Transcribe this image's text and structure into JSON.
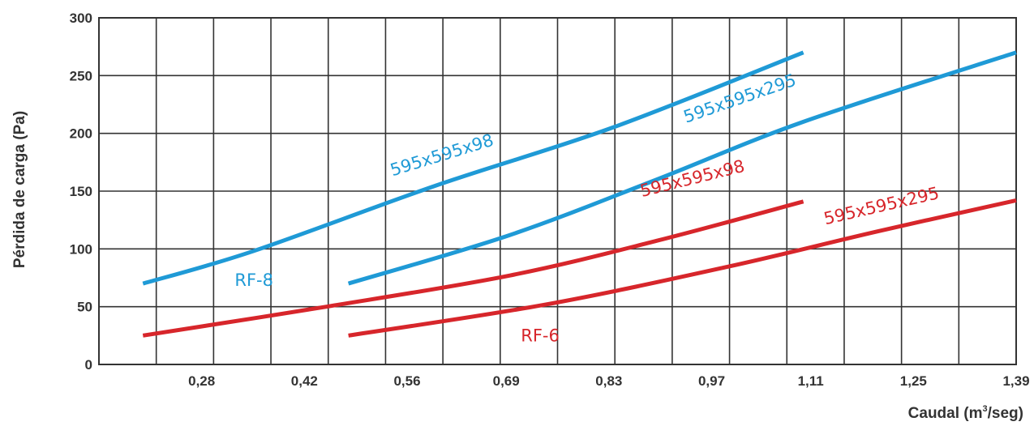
{
  "chart_data": {
    "type": "line",
    "title": "",
    "xlabel": "Caudal (m",
    "xlabel_sup": "3",
    "xlabel_tail": "/seg)",
    "ylabel": "Pérdida de carga (Pa)",
    "xlim": [
      0.14,
      1.39
    ],
    "ylim": [
      0,
      300
    ],
    "x_tick_labels": [
      "0,28",
      "0,42",
      "0,56",
      "0,69",
      "0,83",
      "0,97",
      "1,11",
      "1,25",
      "1,39"
    ],
    "x_tick_values": [
      0.28,
      0.42,
      0.56,
      0.695,
      0.835,
      0.975,
      1.11,
      1.25,
      1.39
    ],
    "y_ticks": [
      0,
      50,
      100,
      150,
      200,
      250,
      300
    ],
    "y_tick_labels": [
      "0",
      "50",
      "100",
      "150",
      "200",
      "250",
      "300"
    ],
    "grid": true,
    "colors": {
      "rf8": "#1f9ad6",
      "rf6": "#d7262b",
      "grid": "#333333",
      "text": "#333333"
    },
    "group_labels": [
      {
        "text": "RF-8",
        "group": "rf8"
      },
      {
        "text": "RF-6",
        "group": "rf6"
      }
    ],
    "series": [
      {
        "name": "595x595x98",
        "group": "rf8",
        "points": [
          [
            0.2,
            70
          ],
          [
            0.35,
            98
          ],
          [
            0.6,
            155
          ],
          [
            0.84,
            205
          ],
          [
            1.1,
            270
          ]
        ]
      },
      {
        "name": "595x595x295",
        "group": "rf8",
        "points": [
          [
            0.48,
            70
          ],
          [
            0.7,
            112
          ],
          [
            0.9,
            160
          ],
          [
            1.1,
            210
          ],
          [
            1.39,
            270
          ]
        ]
      },
      {
        "name": "595x595x98",
        "group": "rf6",
        "points": [
          [
            0.2,
            25
          ],
          [
            0.45,
            50
          ],
          [
            0.7,
            77
          ],
          [
            0.9,
            107
          ],
          [
            1.1,
            141
          ]
        ]
      },
      {
        "name": "595x595x295",
        "group": "rf6",
        "points": [
          [
            0.48,
            25
          ],
          [
            0.75,
            52
          ],
          [
            1.0,
            85
          ],
          [
            1.2,
            115
          ],
          [
            1.39,
            142
          ]
        ]
      }
    ]
  }
}
